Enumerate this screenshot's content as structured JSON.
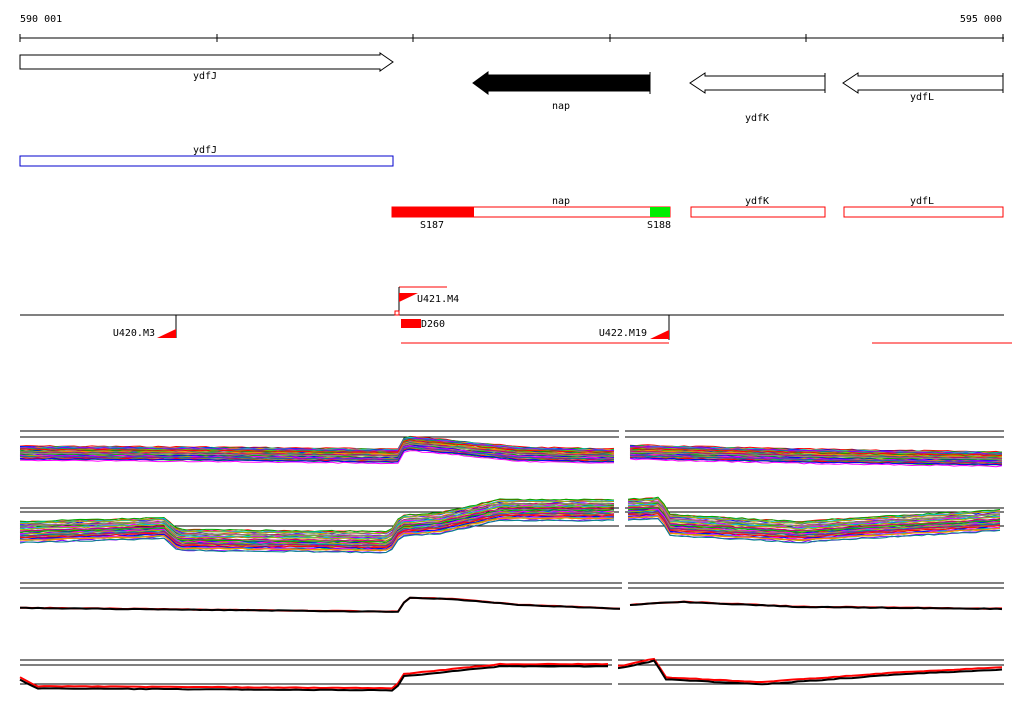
{
  "ruler": {
    "start_label": "590 001",
    "end_label": "595 000"
  },
  "genes": [
    {
      "name": "ydfJ",
      "strand": "+",
      "color": "#ffffff"
    },
    {
      "name": "nap",
      "strand": "-",
      "color": "#000000"
    },
    {
      "name": "ydfK",
      "strand": "-",
      "color": "#ffffff"
    },
    {
      "name": "ydfL",
      "strand": "-",
      "color": "#ffffff"
    }
  ],
  "annotation_blue": {
    "label": "ydfJ",
    "color": "#0000cc"
  },
  "annotation_red": {
    "color": "#ff0000",
    "labels": [
      "nap",
      "ydfK",
      "ydfL"
    ],
    "segments": [
      "S187",
      "S188"
    ],
    "segment_colors": [
      "#ff0000",
      "#00ee00"
    ]
  },
  "features": {
    "labels": [
      "U421.M4",
      "U420.M3",
      "D260",
      "U422.M19"
    ],
    "color": "#ff0000"
  },
  "panels": {
    "colors": [
      "#ff0000",
      "#00aa00",
      "#0000ff",
      "#ff00ff",
      "#00cccc",
      "#aaaa00",
      "#ff8800",
      "#8800ff",
      "#008888",
      "#cc0066",
      "#66cc00",
      "#888888"
    ]
  }
}
